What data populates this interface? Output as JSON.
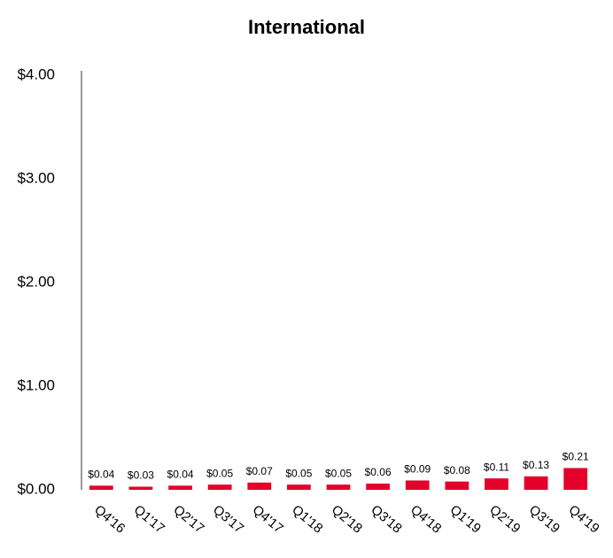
{
  "chart_data": {
    "type": "bar",
    "title": "International",
    "categories": [
      "Q4'16",
      "Q1'17",
      "Q2'17",
      "Q3'17",
      "Q4'17",
      "Q1'18",
      "Q2'18",
      "Q3'18",
      "Q4'18",
      "Q1'19",
      "Q2'19",
      "Q3'19",
      "Q4'19"
    ],
    "values": [
      0.04,
      0.03,
      0.04,
      0.05,
      0.07,
      0.05,
      0.05,
      0.06,
      0.09,
      0.08,
      0.11,
      0.13,
      0.21
    ],
    "value_labels": [
      "$0.04",
      "$0.03",
      "$0.04",
      "$0.05",
      "$0.07",
      "$0.05",
      "$0.05",
      "$0.06",
      "$0.09",
      "$0.08",
      "$0.11",
      "$0.13",
      "$0.21"
    ],
    "color": "#e4002b",
    "ylim": [
      0,
      4
    ],
    "yticks": [
      {
        "value": 0,
        "label": "$0.00"
      },
      {
        "value": 1,
        "label": "$1.00"
      },
      {
        "value": 2,
        "label": "$2.00"
      },
      {
        "value": 3,
        "label": "$3.00"
      },
      {
        "value": 4,
        "label": "$4.00"
      }
    ],
    "grid": false
  }
}
